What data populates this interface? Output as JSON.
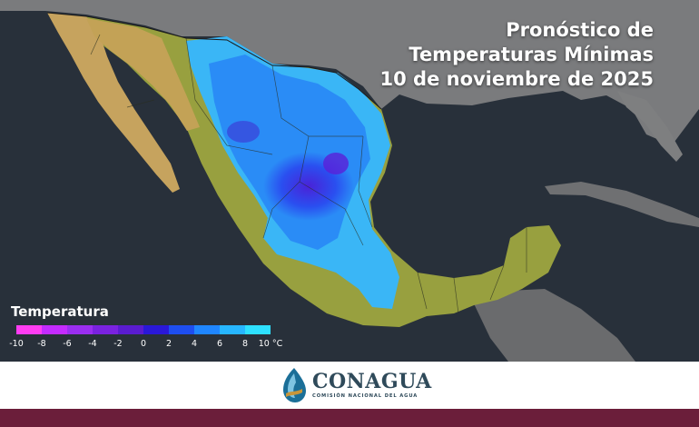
{
  "title": {
    "line1": "Pronóstico de",
    "line2": "Temperaturas Mínimas",
    "line3": "10 de noviembre de 2025"
  },
  "legend": {
    "title": "Temperatura",
    "unit": "°C",
    "ticks": [
      "-10",
      "-8",
      "-6",
      "-4",
      "-2",
      "0",
      "2",
      "4",
      "6",
      "8",
      "10"
    ],
    "colors": [
      "#ff3df2",
      "#c42bff",
      "#9a2ef0",
      "#7a22e0",
      "#5a1cd0",
      "#2a18d8",
      "#1e4ef0",
      "#1f86ff",
      "#27b6ff",
      "#2ee0ff",
      "#33f4ea"
    ]
  },
  "footer": {
    "brand": "CONAGUA",
    "subtitle": "COMISIÓN NACIONAL DEL AGUA"
  },
  "colors": {
    "ocean": "#28303a",
    "land_other": "#7c7c7c",
    "mexico_base": "#9a9e3e",
    "baja": "#c7a55f",
    "band": "#6b1e3a"
  }
}
